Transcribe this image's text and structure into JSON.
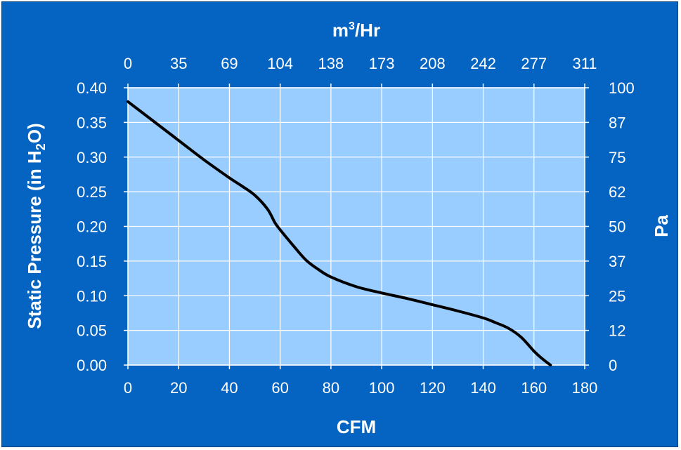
{
  "chart_data": {
    "type": "line",
    "x_axis": {
      "label": "CFM",
      "ticks": [
        "0",
        "20",
        "40",
        "60",
        "80",
        "100",
        "120",
        "140",
        "160",
        "180"
      ],
      "range": [
        0,
        180
      ]
    },
    "x2_axis": {
      "label_base": "m",
      "label_sup": "3",
      "label_rest": "/Hr",
      "ticks": [
        "0",
        "35",
        "69",
        "104",
        "138",
        "173",
        "208",
        "242",
        "277",
        "311"
      ]
    },
    "y_axis": {
      "label_prefix": "Static Pressure (in H",
      "label_sub": "2",
      "label_suffix": "O)",
      "ticks": [
        "0.00",
        "0.05",
        "0.10",
        "0.15",
        "0.20",
        "0.25",
        "0.30",
        "0.35",
        "0.40"
      ],
      "range": [
        0,
        0.4
      ]
    },
    "y2_axis": {
      "label": "Pa",
      "ticks": [
        "0",
        "12",
        "25",
        "37",
        "50",
        "62",
        "75",
        "87",
        "100"
      ]
    },
    "grid": true,
    "series": [
      {
        "x": [
          0,
          10,
          20,
          30,
          40,
          45,
          50,
          55,
          58,
          60,
          65,
          70,
          75,
          80,
          90,
          100,
          110,
          120,
          130,
          140,
          145,
          150,
          155,
          160,
          163,
          166.5
        ],
        "y": [
          0.38,
          0.352,
          0.324,
          0.296,
          0.27,
          0.258,
          0.245,
          0.225,
          0.205,
          0.195,
          0.173,
          0.152,
          0.138,
          0.127,
          0.113,
          0.104,
          0.096,
          0.087,
          0.078,
          0.068,
          0.061,
          0.053,
          0.04,
          0.02,
          0.01,
          0.0
        ]
      }
    ],
    "colors": {
      "background": "#0563C1",
      "plot_area": "#99CCFF",
      "line": "#000000",
      "text": "#ffffff"
    }
  }
}
